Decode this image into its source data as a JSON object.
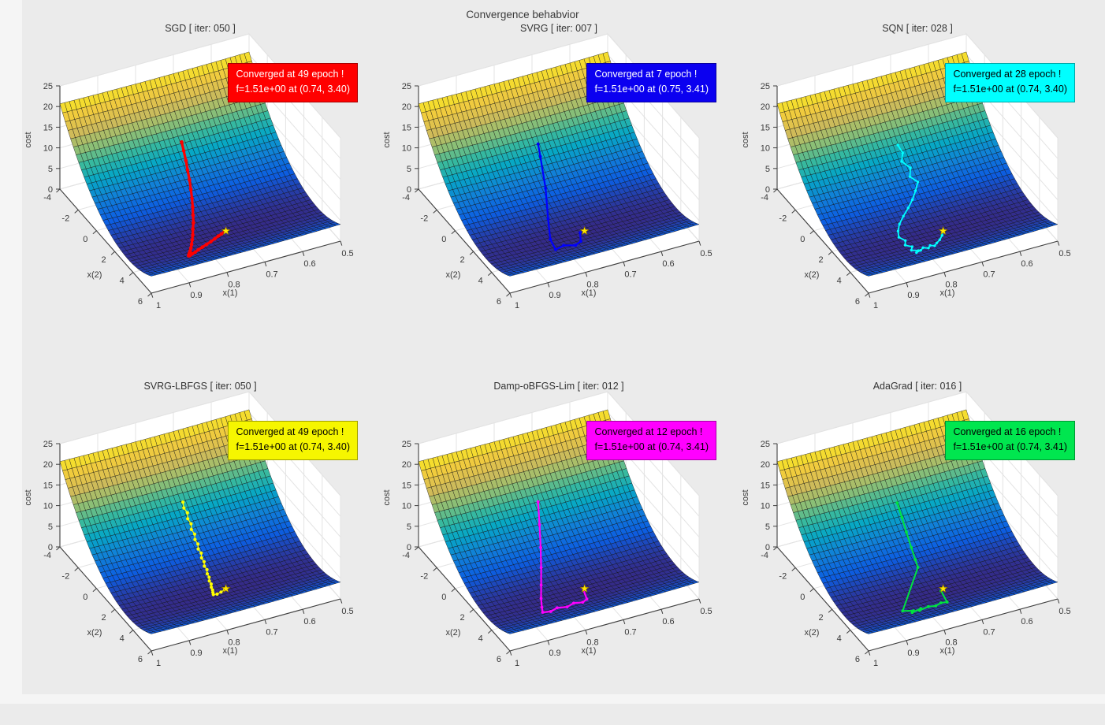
{
  "figure": {
    "title": "Convergence behabvior",
    "background": "#ebebeb"
  },
  "axes": {
    "zlabel": "cost",
    "x1label": "x(1)",
    "x2label": "x(2)",
    "z_ticks": [
      "0",
      "5",
      "10",
      "15",
      "20",
      "25"
    ],
    "x1_ticks": [
      "1",
      "0.9",
      "0.8",
      "0.7",
      "0.6",
      "0.5"
    ],
    "x2_ticks": [
      "-4",
      "-2",
      "0",
      "2",
      "4",
      "6"
    ],
    "x1_range": [
      0.5,
      1.0
    ],
    "x2_range": [
      -4,
      6
    ],
    "z_range": [
      0,
      25
    ],
    "grid": true,
    "wall_color": "#ffffff",
    "grid_color": "#e3e3e3",
    "axis_color": "#3f3f3f"
  },
  "surface": {
    "description": "quadratic cost bowl f(x1,x2) = fmin + k1*(x1-m1)^2 + k2*(x2-m2)^2",
    "fmin": 1.51,
    "min": [
      0.74,
      3.4
    ],
    "k1": 4.0,
    "k2": 0.345,
    "colormap": "parula",
    "colormap_stops": [
      [
        0.0,
        "#352a87"
      ],
      [
        0.13,
        "#0c5ee2"
      ],
      [
        0.25,
        "#1180d8"
      ],
      [
        0.38,
        "#06a7c6"
      ],
      [
        0.5,
        "#38b99e"
      ],
      [
        0.62,
        "#92bf73"
      ],
      [
        0.75,
        "#d3bb58"
      ],
      [
        0.88,
        "#f0cb3e"
      ],
      [
        1.0,
        "#f7e626"
      ]
    ],
    "mesh": {
      "nx1": 40,
      "nx2": 34
    },
    "optimum_marker_color": "#ffe600"
  },
  "chart_data": {
    "type": "surface3d-with-trajectories",
    "title": "Convergence behabvior",
    "layout": "2 rows x 3 columns",
    "subplots": [
      {
        "name": "SGD",
        "title": "SGD [ iter: 050 ]",
        "iterations_shown": "050",
        "line_color": "#ff0000",
        "line_width": 3.2,
        "marker_r": 2.3,
        "annotation": {
          "line1": "Converged at 49 epoch !",
          "line2": "f=1.51e+00 at (0.74, 3.40)",
          "bg": "#ff0000",
          "fg": "#ffffff"
        },
        "converged_epoch": 49,
        "f_value": "1.51e+00",
        "converged_at": [
          0.74,
          3.4
        ],
        "trajectory_x1x2": [
          [
            0.735,
            -1.65
          ],
          [
            0.738,
            -1.3
          ],
          [
            0.742,
            -0.9
          ],
          [
            0.747,
            -0.5
          ],
          [
            0.753,
            -0.05
          ],
          [
            0.76,
            0.4
          ],
          [
            0.768,
            0.85
          ],
          [
            0.777,
            1.3
          ],
          [
            0.787,
            1.75
          ],
          [
            0.797,
            2.2
          ],
          [
            0.808,
            2.6
          ],
          [
            0.818,
            3.0
          ],
          [
            0.828,
            3.35
          ],
          [
            0.838,
            3.7
          ],
          [
            0.847,
            4.0
          ],
          [
            0.855,
            4.25
          ],
          [
            0.862,
            4.45
          ],
          [
            0.867,
            4.6
          ],
          [
            0.87,
            4.7
          ],
          [
            0.869,
            4.72
          ],
          [
            0.865,
            4.68
          ],
          [
            0.858,
            4.6
          ],
          [
            0.848,
            4.5
          ],
          [
            0.836,
            4.35
          ],
          [
            0.822,
            4.2
          ],
          [
            0.807,
            4.05
          ],
          [
            0.792,
            3.9
          ],
          [
            0.778,
            3.75
          ],
          [
            0.765,
            3.6
          ],
          [
            0.754,
            3.5
          ],
          [
            0.746,
            3.44
          ],
          [
            0.74,
            3.4
          ]
        ]
      },
      {
        "name": "SVRG",
        "title": "SVRG [ iter: 007 ]",
        "iterations_shown": "007",
        "line_color": "#0000ff",
        "line_width": 2.2,
        "marker_r": 1.9,
        "annotation": {
          "line1": "Converged at 7 epoch !",
          "line2": "f=1.51e+00 at (0.75, 3.41)",
          "bg": "#0b00f0",
          "fg": "#ffffff"
        },
        "converged_epoch": 7,
        "f_value": "1.51e+00",
        "converged_at": [
          0.75,
          3.41
        ],
        "trajectory_x1x2": [
          [
            0.742,
            -1.6
          ],
          [
            0.748,
            -1.1
          ],
          [
            0.768,
            0.3
          ],
          [
            0.8,
            1.9
          ],
          [
            0.828,
            3.3
          ],
          [
            0.838,
            4.3
          ],
          [
            0.812,
            4.1
          ],
          [
            0.788,
            4.4
          ],
          [
            0.768,
            4.15
          ],
          [
            0.752,
            3.41
          ]
        ]
      },
      {
        "name": "SQN",
        "title": "SQN [ iter: 028 ]",
        "iterations_shown": "028",
        "line_color": "#00ffff",
        "line_width": 1.8,
        "marker_r": 1.7,
        "annotation": {
          "line1": "Converged at 28 epoch !",
          "line2": "f=1.51e+00 at (0.74, 3.40)",
          "bg": "#00ffff",
          "fg": "#000000"
        },
        "converged_epoch": 28,
        "f_value": "1.51e+00",
        "converged_at": [
          0.74,
          3.4
        ],
        "trajectory_x1x2": [
          [
            0.74,
            -1.55
          ],
          [
            0.736,
            -1.2
          ],
          [
            0.746,
            -0.88
          ],
          [
            0.732,
            -0.52
          ],
          [
            0.742,
            -0.15
          ],
          [
            0.729,
            0.18
          ],
          [
            0.744,
            0.55
          ],
          [
            0.762,
            0.95
          ],
          [
            0.782,
            1.32
          ],
          [
            0.804,
            1.7
          ],
          [
            0.824,
            2.1
          ],
          [
            0.838,
            2.52
          ],
          [
            0.846,
            2.95
          ],
          [
            0.838,
            3.32
          ],
          [
            0.847,
            3.68
          ],
          [
            0.836,
            3.98
          ],
          [
            0.845,
            4.28
          ],
          [
            0.832,
            4.5
          ],
          [
            0.841,
            4.66
          ],
          [
            0.827,
            4.55
          ],
          [
            0.816,
            4.34
          ],
          [
            0.806,
            4.52
          ],
          [
            0.796,
            4.3
          ],
          [
            0.788,
            4.46
          ],
          [
            0.777,
            4.24
          ],
          [
            0.764,
            4.02
          ],
          [
            0.75,
            3.7
          ],
          [
            0.741,
            3.4
          ]
        ]
      },
      {
        "name": "SVRG-LBFGS",
        "title": "SVRG-LBFGS [ iter: 050 ]",
        "iterations_shown": "050",
        "line_color": "#ffff00",
        "line_width": 1.2,
        "marker_r": 2.1,
        "annotation": {
          "line1": "Converged at 49 epoch !",
          "line2": "f=1.51e+00 at (0.74, 3.40)",
          "bg": "#f6f600",
          "fg": "#000000"
        },
        "converged_epoch": 49,
        "f_value": "1.51e+00",
        "converged_at": [
          0.74,
          3.4
        ],
        "trajectory_x1x2": [
          [
            0.734,
            -1.55
          ],
          [
            0.737,
            -1.32
          ],
          [
            0.733,
            -1.1
          ],
          [
            0.738,
            -0.86
          ],
          [
            0.735,
            -0.62
          ],
          [
            0.74,
            -0.38
          ],
          [
            0.737,
            -0.14
          ],
          [
            0.742,
            0.1
          ],
          [
            0.74,
            0.34
          ],
          [
            0.745,
            0.58
          ],
          [
            0.743,
            0.82
          ],
          [
            0.748,
            1.06
          ],
          [
            0.747,
            1.3
          ],
          [
            0.752,
            1.54
          ],
          [
            0.751,
            1.78
          ],
          [
            0.756,
            2.02
          ],
          [
            0.757,
            2.26
          ],
          [
            0.762,
            2.5
          ],
          [
            0.763,
            2.74
          ],
          [
            0.768,
            2.96
          ],
          [
            0.77,
            3.18
          ],
          [
            0.774,
            3.38
          ],
          [
            0.777,
            3.56
          ],
          [
            0.768,
            3.6
          ],
          [
            0.756,
            3.52
          ],
          [
            0.744,
            3.42
          ]
        ]
      },
      {
        "name": "Damp-oBFGS-Lim",
        "title": "Damp-oBFGS-Lim [ iter: 012 ]",
        "iterations_shown": "012",
        "line_color": "#ff00ff",
        "line_width": 2.2,
        "marker_r": 1.9,
        "annotation": {
          "line1": "Converged at 12 epoch !",
          "line2": "f=1.51e+00 at (0.74, 3.41)",
          "bg": "#ff00ff",
          "fg": "#000000"
        },
        "converged_epoch": 12,
        "f_value": "1.51e+00",
        "converged_at": [
          0.74,
          3.41
        ],
        "trajectory_x1x2": [
          [
            0.742,
            -1.6
          ],
          [
            0.76,
            -0.7
          ],
          [
            0.781,
            0.3
          ],
          [
            0.804,
            1.3
          ],
          [
            0.828,
            2.3
          ],
          [
            0.85,
            3.2
          ],
          [
            0.866,
            3.95
          ],
          [
            0.876,
            4.45
          ],
          [
            0.858,
            4.58
          ],
          [
            0.836,
            4.38
          ],
          [
            0.814,
            4.56
          ],
          [
            0.792,
            4.36
          ],
          [
            0.772,
            4.52
          ],
          [
            0.756,
            4.32
          ],
          [
            0.744,
            3.45
          ]
        ]
      },
      {
        "name": "AdaGrad",
        "title": "AdaGrad [ iter: 016 ]",
        "iterations_shown": "016",
        "line_color": "#00e33e",
        "line_width": 2.0,
        "marker_r": 1.9,
        "annotation": {
          "line1": "Converged at 16 epoch !",
          "line2": "f=1.51e+00 at (0.74, 3.41)",
          "bg": "#00e64f",
          "fg": "#000000"
        },
        "converged_epoch": 16,
        "f_value": "1.51e+00",
        "converged_at": [
          0.74,
          3.41
        ],
        "trajectory_x1x2": [
          [
            0.742,
            -1.55
          ],
          [
            0.744,
            -0.95
          ],
          [
            0.748,
            -0.3
          ],
          [
            0.753,
            0.45
          ],
          [
            0.758,
            1.1
          ],
          [
            0.762,
            1.55
          ],
          [
            0.87,
            4.35
          ],
          [
            0.848,
            4.62
          ],
          [
            0.855,
            4.78
          ],
          [
            0.828,
            4.6
          ],
          [
            0.835,
            4.76
          ],
          [
            0.808,
            4.6
          ],
          [
            0.792,
            4.74
          ],
          [
            0.774,
            4.56
          ],
          [
            0.76,
            4.66
          ],
          [
            0.748,
            3.5
          ],
          [
            0.741,
            3.41
          ]
        ]
      }
    ]
  }
}
